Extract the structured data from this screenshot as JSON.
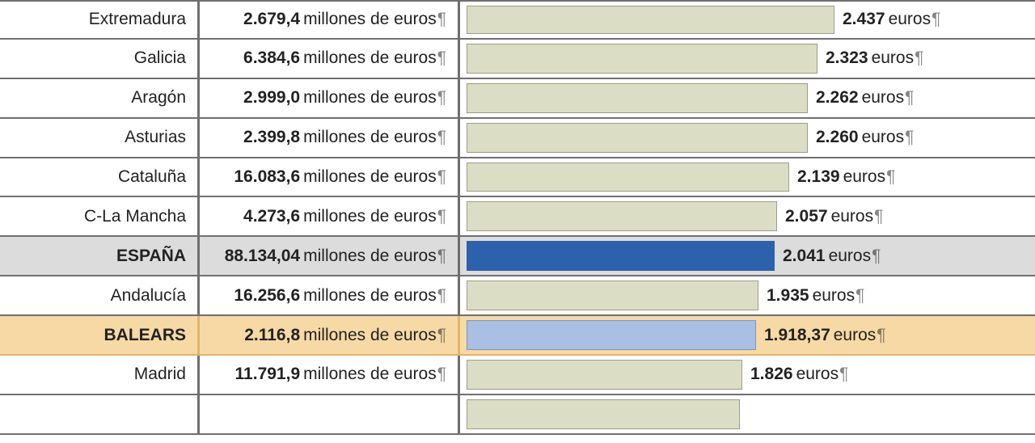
{
  "units_total": "millones de euros",
  "units_percap": "euros",
  "pilcrow": "¶",
  "max_percap": 3000,
  "colors": {
    "bar_default": "#dbddc4",
    "bar_spain": "#2b62ab",
    "bar_balears": "#a9bfe3",
    "bar_border": "#9b9d87",
    "row_spain_bg": "#dcdcdc",
    "row_balears_bg": "#f6d9a5",
    "row_balears_border": "#e1b569",
    "rule": "#6f6f6f"
  },
  "rows": [
    {
      "region": "Extremadura",
      "total": "2.679,4",
      "percap": "2.437",
      "percap_num": 2437,
      "style": "normal"
    },
    {
      "region": "Galicia",
      "total": "6.384,6",
      "percap": "2.323",
      "percap_num": 2323,
      "style": "normal"
    },
    {
      "region": "Aragón",
      "total": "2.999,0",
      "percap": "2.262",
      "percap_num": 2262,
      "style": "normal"
    },
    {
      "region": "Asturias",
      "total": "2.399,8",
      "percap": "2.260",
      "percap_num": 2260,
      "style": "normal"
    },
    {
      "region": "Cataluña",
      "total": "16.083,6",
      "percap": "2.139",
      "percap_num": 2139,
      "style": "normal"
    },
    {
      "region": "C-La Mancha",
      "total": "4.273,6",
      "percap": "2.057",
      "percap_num": 2057,
      "style": "normal"
    },
    {
      "region": "ESPAÑA",
      "total": "88.134,04",
      "percap": "2.041",
      "percap_num": 2041,
      "style": "spain"
    },
    {
      "region": "Andalucía",
      "total": "16.256,6",
      "percap": "1.935",
      "percap_num": 1935,
      "style": "normal"
    },
    {
      "region": "BALEARS",
      "total": "2.116,8",
      "percap": "1.918,37",
      "percap_num": 1918.37,
      "style": "balears"
    },
    {
      "region": "Madrid",
      "total": "11.791,9",
      "percap": "1.826",
      "percap_num": 1826,
      "style": "normal"
    },
    {
      "region": "",
      "total": "",
      "percap": "",
      "percap_num": 1810,
      "style": "normal"
    }
  ]
}
